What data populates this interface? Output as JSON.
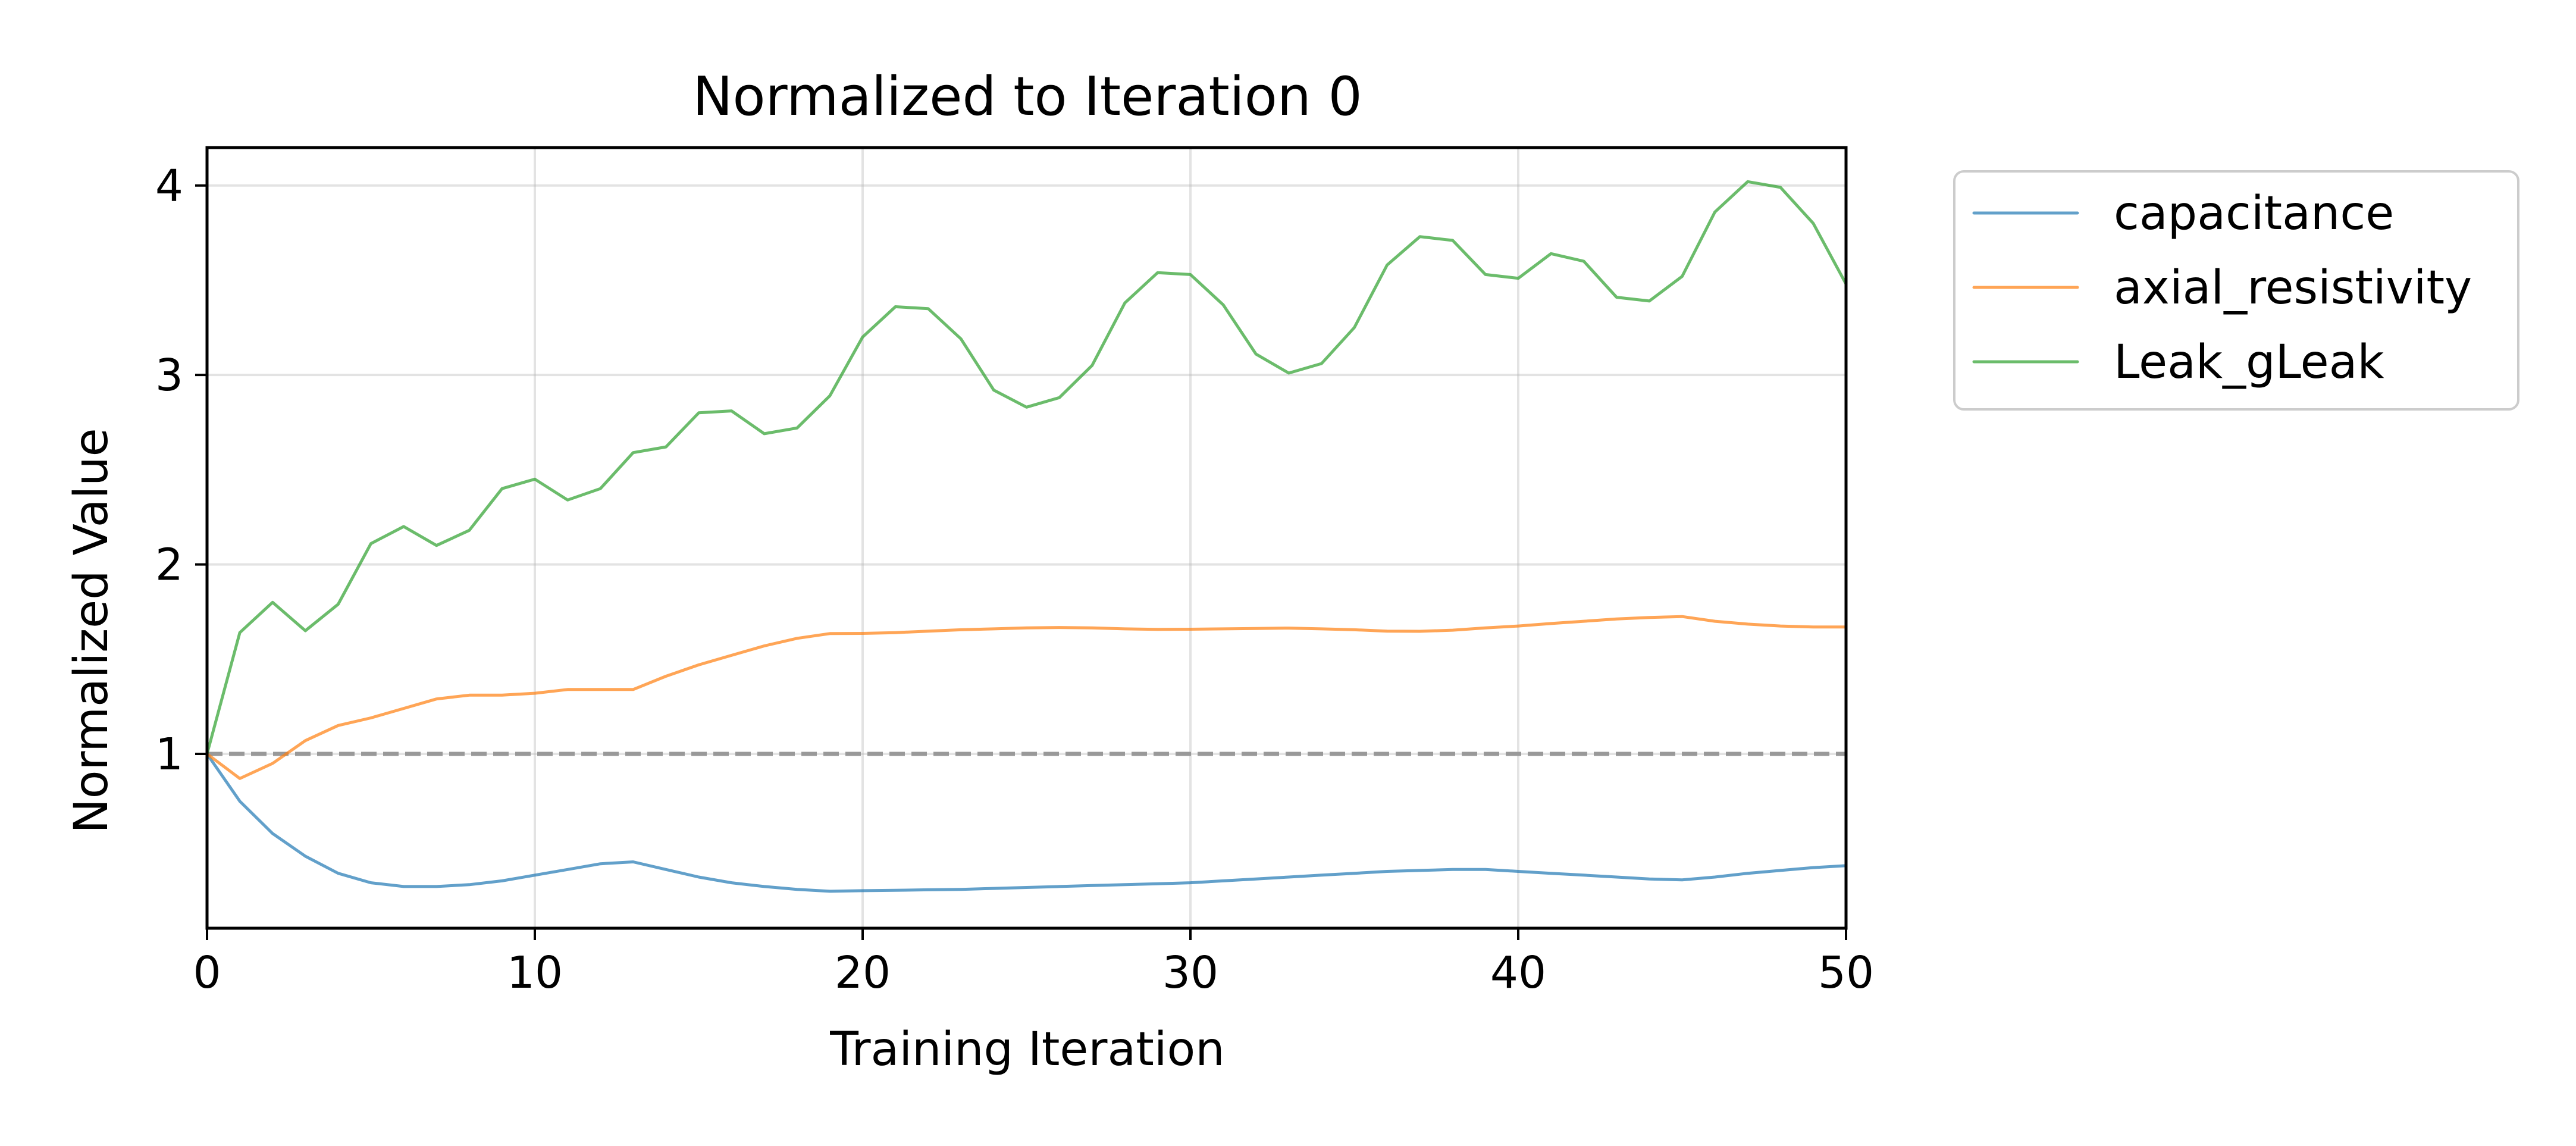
{
  "chart_data": {
    "type": "line",
    "title": "Normalized to Iteration 0",
    "xlabel": "Training Iteration",
    "ylabel": "Normalized Value",
    "xlim": [
      0,
      50
    ],
    "ylim": [
      0.08,
      4.2
    ],
    "xticks": [
      0,
      10,
      20,
      30,
      40,
      50
    ],
    "yticks": [
      1,
      2,
      3,
      4
    ],
    "grid": true,
    "legend_position": "outside-right-top",
    "reference_line": {
      "y": 1.0,
      "style": "dashed",
      "color": "#999999"
    },
    "x": [
      0,
      1,
      2,
      3,
      4,
      5,
      6,
      7,
      8,
      9,
      10,
      11,
      12,
      13,
      14,
      15,
      16,
      17,
      18,
      19,
      20,
      21,
      22,
      23,
      24,
      25,
      26,
      27,
      28,
      29,
      30,
      31,
      32,
      33,
      34,
      35,
      36,
      37,
      38,
      39,
      40,
      41,
      42,
      43,
      44,
      45,
      46,
      47,
      48,
      49,
      50
    ],
    "series": [
      {
        "name": "capacitance",
        "color": "#1f77b4",
        "values": [
          1.0,
          0.75,
          0.58,
          0.46,
          0.37,
          0.32,
          0.3,
          0.3,
          0.31,
          0.33,
          0.36,
          0.39,
          0.42,
          0.43,
          0.39,
          0.35,
          0.32,
          0.3,
          0.285,
          0.275,
          0.278,
          0.28,
          0.283,
          0.285,
          0.29,
          0.295,
          0.3,
          0.305,
          0.31,
          0.315,
          0.32,
          0.33,
          0.34,
          0.35,
          0.36,
          0.37,
          0.38,
          0.385,
          0.39,
          0.39,
          0.38,
          0.37,
          0.36,
          0.35,
          0.34,
          0.335,
          0.35,
          0.37,
          0.385,
          0.4,
          0.41
        ]
      },
      {
        "name": "axial_resistivity",
        "color": "#ff7f0e",
        "values": [
          1.0,
          0.87,
          0.95,
          1.07,
          1.15,
          1.19,
          1.24,
          1.29,
          1.31,
          1.31,
          1.32,
          1.34,
          1.34,
          1.34,
          1.41,
          1.47,
          1.52,
          1.57,
          1.61,
          1.635,
          1.636,
          1.64,
          1.648,
          1.655,
          1.66,
          1.665,
          1.667,
          1.665,
          1.66,
          1.657,
          1.658,
          1.66,
          1.662,
          1.664,
          1.66,
          1.655,
          1.648,
          1.647,
          1.653,
          1.665,
          1.675,
          1.688,
          1.7,
          1.712,
          1.72,
          1.725,
          1.7,
          1.685,
          1.675,
          1.67,
          1.67
        ]
      },
      {
        "name": "Leak_gLeak",
        "color": "#2ca02c",
        "values": [
          1.0,
          1.64,
          1.8,
          1.65,
          1.79,
          2.11,
          2.2,
          2.1,
          2.18,
          2.4,
          2.45,
          2.34,
          2.4,
          2.59,
          2.62,
          2.8,
          2.81,
          2.69,
          2.72,
          2.89,
          3.2,
          3.36,
          3.35,
          3.19,
          2.92,
          2.83,
          2.88,
          3.05,
          3.38,
          3.54,
          3.53,
          3.37,
          3.11,
          3.01,
          3.06,
          3.25,
          3.58,
          3.73,
          3.71,
          3.53,
          3.51,
          3.64,
          3.6,
          3.41,
          3.39,
          3.52,
          3.86,
          4.02,
          3.99,
          3.8,
          3.48
        ]
      }
    ]
  }
}
